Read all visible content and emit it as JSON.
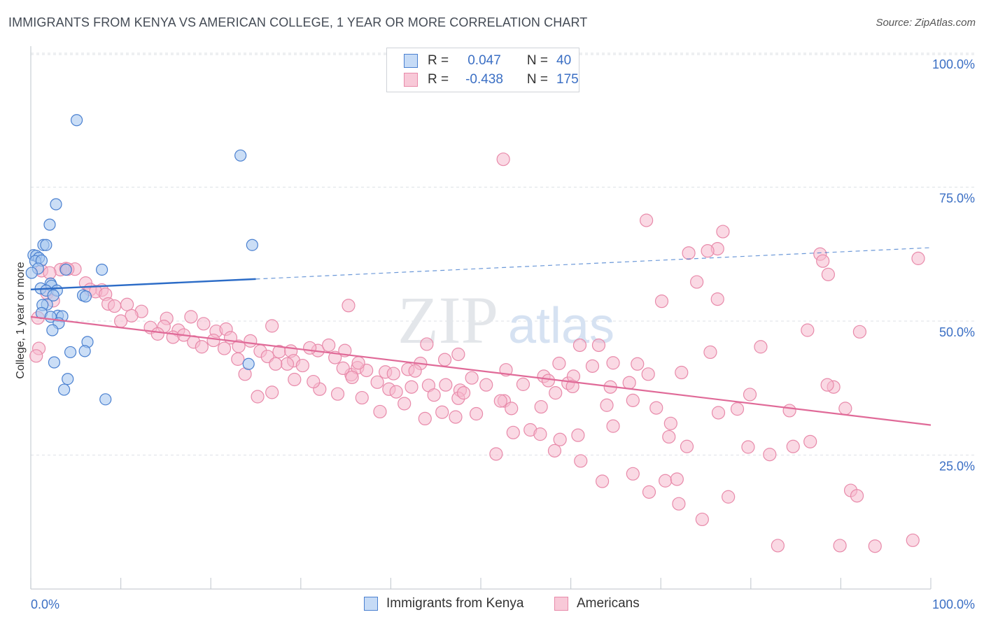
{
  "header": {
    "title": "IMMIGRANTS FROM KENYA VS AMERICAN COLLEGE, 1 YEAR OR MORE CORRELATION CHART",
    "source": "Source: ZipAtlas.com"
  },
  "watermark": {
    "zip": "ZIP",
    "atlas": "atlas"
  },
  "colors": {
    "kenya_fill": "#a9c8f0",
    "kenya_stroke": "#4a80d0",
    "kenya_line": "#2c6cc7",
    "americans_fill": "#f6b9cd",
    "americans_stroke": "#e88aaa",
    "americans_line": "#e06a98",
    "grid": "#dde1e6",
    "axis_label": "#3b6fc4"
  },
  "legend_top": {
    "rows": [
      {
        "r_label": "R =",
        "r_value": "0.047",
        "n_label": "N =",
        "n_value": "40"
      },
      {
        "r_label": "R =",
        "r_value": "-0.438",
        "n_label": "N =",
        "n_value": "175"
      }
    ]
  },
  "legend_bottom": {
    "items": [
      "Immigrants from Kenya",
      "Americans"
    ]
  },
  "chart_data": {
    "type": "scatter",
    "title": "IMMIGRANTS FROM KENYA VS AMERICAN COLLEGE, 1 YEAR OR MORE CORRELATION CHART",
    "xlabel": "",
    "ylabel": "College, 1 year or more",
    "xlim": [
      0,
      100
    ],
    "ylim": [
      0,
      100
    ],
    "x_tick_labels": [
      "0.0%",
      "100.0%"
    ],
    "y_ticks": [
      25,
      50,
      75,
      100
    ],
    "y_tick_labels": [
      "25.0%",
      "50.0%",
      "75.0%",
      "100.0%"
    ],
    "grid": true,
    "legend": "top-center",
    "series": [
      {
        "name": "Immigrants from Kenya",
        "R": 0.047,
        "N": 40,
        "trend": {
          "x0": 0,
          "y0": 55.9,
          "x1": 100,
          "y1": 63.7,
          "solid_until_x": 25
        },
        "points": [
          [
            5.1,
            87.5
          ],
          [
            23.3,
            80.9
          ],
          [
            2.8,
            71.8
          ],
          [
            2.1,
            68.0
          ],
          [
            1.4,
            64.2
          ],
          [
            1.7,
            64.2
          ],
          [
            24.6,
            64.2
          ],
          [
            0.3,
            62.3
          ],
          [
            0.6,
            62.2
          ],
          [
            0.9,
            61.8
          ],
          [
            0.5,
            61.2
          ],
          [
            1.2,
            61.3
          ],
          [
            0.8,
            59.8
          ],
          [
            3.9,
            59.6
          ],
          [
            7.9,
            59.6
          ],
          [
            2.2,
            57.0
          ],
          [
            2.3,
            56.6
          ],
          [
            1.1,
            56.1
          ],
          [
            1.7,
            55.7
          ],
          [
            2.9,
            55.7
          ],
          [
            2.5,
            54.8
          ],
          [
            5.8,
            54.8
          ],
          [
            6.1,
            54.6
          ],
          [
            1.8,
            53.1
          ],
          [
            1.3,
            53.0
          ],
          [
            1.2,
            51.5
          ],
          [
            3.0,
            51.0
          ],
          [
            3.5,
            50.9
          ],
          [
            2.2,
            50.8
          ],
          [
            3.1,
            49.6
          ],
          [
            2.4,
            48.3
          ],
          [
            6.3,
            46.1
          ],
          [
            4.4,
            44.2
          ],
          [
            6.0,
            44.4
          ],
          [
            2.6,
            42.3
          ],
          [
            24.2,
            42.0
          ],
          [
            4.1,
            39.2
          ],
          [
            3.7,
            37.2
          ],
          [
            8.3,
            35.4
          ],
          [
            0.1,
            59.0
          ]
        ]
      },
      {
        "name": "Americans",
        "R": -0.438,
        "N": 175,
        "trend": {
          "x0": 0,
          "y0": 50.8,
          "x1": 100,
          "y1": 30.6
        },
        "points": [
          [
            52.5,
            80.2
          ],
          [
            68.4,
            68.8
          ],
          [
            76.9,
            66.7
          ],
          [
            76.3,
            63.5
          ],
          [
            75.2,
            63.1
          ],
          [
            73.1,
            62.7
          ],
          [
            87.7,
            62.5
          ],
          [
            98.6,
            61.7
          ],
          [
            88.0,
            61.2
          ],
          [
            3.3,
            59.6
          ],
          [
            3.9,
            59.8
          ],
          [
            4.9,
            59.7
          ],
          [
            1.2,
            59.4
          ],
          [
            2.1,
            59.0
          ],
          [
            4.1,
            59.7
          ],
          [
            88.6,
            58.7
          ],
          [
            74.0,
            57.3
          ],
          [
            6.1,
            57.1
          ],
          [
            7.9,
            55.8
          ],
          [
            6.6,
            55.9
          ],
          [
            7.2,
            55.5
          ],
          [
            8.3,
            55.0
          ],
          [
            70.1,
            53.7
          ],
          [
            76.3,
            54.1
          ],
          [
            1.8,
            55.2
          ],
          [
            2.5,
            53.8
          ],
          [
            8.6,
            53.2
          ],
          [
            10.7,
            53.1
          ],
          [
            9.3,
            52.8
          ],
          [
            12.3,
            51.8
          ],
          [
            11.2,
            51.0
          ],
          [
            0.8,
            50.6
          ],
          [
            10.0,
            50.0
          ],
          [
            35.3,
            52.9
          ],
          [
            15.1,
            50.5
          ],
          [
            17.8,
            50.8
          ],
          [
            19.2,
            49.5
          ],
          [
            14.8,
            49.0
          ],
          [
            13.3,
            48.8
          ],
          [
            16.4,
            48.3
          ],
          [
            20.6,
            48.1
          ],
          [
            21.7,
            48.5
          ],
          [
            26.8,
            49.1
          ],
          [
            14.1,
            47.6
          ],
          [
            15.8,
            47.0
          ],
          [
            17.0,
            47.4
          ],
          [
            18.1,
            46.1
          ],
          [
            20.3,
            46.4
          ],
          [
            22.2,
            46.9
          ],
          [
            24.4,
            46.3
          ],
          [
            23.1,
            45.3
          ],
          [
            19.0,
            45.2
          ],
          [
            25.5,
            44.4
          ],
          [
            27.6,
            44.3
          ],
          [
            28.9,
            44.4
          ],
          [
            31.9,
            44.5
          ],
          [
            31.0,
            45.0
          ],
          [
            33.1,
            45.5
          ],
          [
            35.6,
            40.0
          ],
          [
            29.2,
            42.6
          ],
          [
            26.3,
            43.4
          ],
          [
            28.5,
            42.0
          ],
          [
            30.2,
            41.7
          ],
          [
            33.8,
            43.2
          ],
          [
            34.9,
            44.5
          ],
          [
            36.3,
            41.3
          ],
          [
            37.3,
            40.8
          ],
          [
            39.4,
            40.5
          ],
          [
            35.7,
            39.5
          ],
          [
            38.5,
            38.6
          ],
          [
            43.3,
            42.1
          ],
          [
            47.5,
            43.8
          ],
          [
            44.0,
            45.7
          ],
          [
            41.9,
            41.0
          ],
          [
            39.8,
            37.3
          ],
          [
            40.6,
            36.8
          ],
          [
            42.3,
            37.7
          ],
          [
            44.2,
            38.0
          ],
          [
            47.7,
            37.1
          ],
          [
            44.8,
            36.2
          ],
          [
            46.1,
            38.1
          ],
          [
            47.5,
            35.6
          ],
          [
            48.1,
            36.6
          ],
          [
            50.6,
            38.1
          ],
          [
            52.6,
            35.1
          ],
          [
            54.7,
            38.2
          ],
          [
            53.4,
            33.7
          ],
          [
            56.7,
            34.0
          ],
          [
            57.0,
            39.7
          ],
          [
            59.7,
            38.4
          ],
          [
            60.3,
            39.7
          ],
          [
            61.0,
            45.5
          ],
          [
            63.1,
            45.5
          ],
          [
            64.7,
            42.2
          ],
          [
            67.4,
            42.0
          ],
          [
            66.5,
            38.5
          ],
          [
            68.6,
            40.1
          ],
          [
            72.3,
            40.4
          ],
          [
            75.5,
            44.2
          ],
          [
            79.9,
            36.3
          ],
          [
            81.1,
            45.2
          ],
          [
            86.3,
            48.3
          ],
          [
            89.2,
            37.7
          ],
          [
            88.5,
            38.1
          ],
          [
            92.1,
            48.0
          ],
          [
            90.5,
            33.7
          ],
          [
            84.3,
            33.3
          ],
          [
            78.5,
            33.6
          ],
          [
            76.4,
            32.9
          ],
          [
            71.1,
            30.9
          ],
          [
            72.9,
            26.6
          ],
          [
            70.9,
            28.4
          ],
          [
            64.7,
            30.4
          ],
          [
            64.0,
            34.3
          ],
          [
            58.3,
            36.6
          ],
          [
            57.5,
            38.9
          ],
          [
            55.5,
            29.7
          ],
          [
            56.6,
            28.9
          ],
          [
            52.2,
            35.1
          ],
          [
            49.5,
            32.7
          ],
          [
            47.2,
            32.1
          ],
          [
            45.7,
            33.0
          ],
          [
            43.8,
            31.8
          ],
          [
            41.5,
            34.6
          ],
          [
            38.8,
            33.1
          ],
          [
            36.8,
            35.7
          ],
          [
            26.8,
            36.7
          ],
          [
            25.2,
            35.9
          ],
          [
            32.1,
            37.3
          ],
          [
            34.1,
            36.4
          ],
          [
            27.2,
            42.0
          ],
          [
            23.0,
            42.9
          ],
          [
            21.5,
            44.9
          ],
          [
            31.4,
            38.7
          ],
          [
            29.3,
            39.1
          ],
          [
            23.8,
            40.1
          ],
          [
            34.7,
            41.2
          ],
          [
            36.4,
            42.2
          ],
          [
            42.7,
            40.7
          ],
          [
            40.3,
            40.2
          ],
          [
            46.0,
            42.8
          ],
          [
            49.0,
            39.4
          ],
          [
            52.8,
            40.9
          ],
          [
            58.7,
            42.1
          ],
          [
            60.2,
            37.8
          ],
          [
            62.4,
            41.6
          ],
          [
            64.4,
            37.7
          ],
          [
            66.9,
            35.2
          ],
          [
            69.5,
            33.8
          ],
          [
            60.8,
            28.7
          ],
          [
            58.8,
            27.9
          ],
          [
            53.6,
            29.2
          ],
          [
            51.7,
            25.2
          ],
          [
            58.2,
            25.8
          ],
          [
            61.1,
            23.9
          ],
          [
            63.5,
            20.1
          ],
          [
            66.9,
            21.5
          ],
          [
            68.7,
            18.1
          ],
          [
            70.5,
            20.2
          ],
          [
            71.8,
            20.5
          ],
          [
            72.0,
            15.9
          ],
          [
            74.6,
            13.0
          ],
          [
            77.5,
            17.2
          ],
          [
            79.7,
            26.5
          ],
          [
            82.1,
            25.1
          ],
          [
            84.7,
            26.6
          ],
          [
            86.6,
            27.5
          ],
          [
            91.1,
            18.4
          ],
          [
            91.8,
            17.4
          ],
          [
            89.9,
            8.1
          ],
          [
            93.8,
            8.0
          ],
          [
            98.0,
            9.1
          ],
          [
            83.0,
            8.1
          ],
          [
            0.9,
            44.9
          ],
          [
            0.6,
            43.5
          ]
        ]
      }
    ]
  }
}
